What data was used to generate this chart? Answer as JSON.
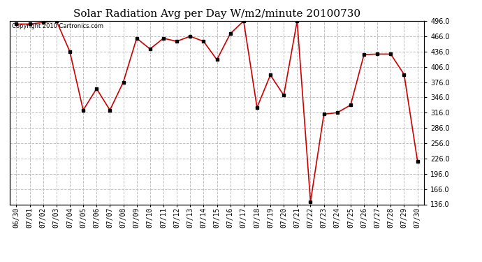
{
  "title": "Solar Radiation Avg per Day W/m2/minute 20100730",
  "copyright_text": "Copyright 2010 Cartronics.com",
  "dates": [
    "06/30",
    "07/01",
    "07/02",
    "07/03",
    "07/04",
    "07/05",
    "07/06",
    "07/07",
    "07/08",
    "07/09",
    "07/10",
    "07/11",
    "07/12",
    "07/13",
    "07/14",
    "07/15",
    "07/16",
    "07/17",
    "07/18",
    "07/19",
    "07/20",
    "07/21",
    "07/22",
    "07/23",
    "07/24",
    "07/25",
    "07/26",
    "07/27",
    "07/28",
    "07/29",
    "07/30"
  ],
  "values": [
    490,
    490,
    493,
    496,
    436,
    321,
    363,
    321,
    376,
    462,
    441,
    462,
    456,
    466,
    456,
    420,
    471,
    496,
    326,
    390,
    350,
    496,
    141,
    313,
    316,
    331,
    430,
    431,
    431,
    391,
    221
  ],
  "ylim": [
    136.0,
    496.0
  ],
  "yticks": [
    136.0,
    166.0,
    196.0,
    226.0,
    256.0,
    286.0,
    316.0,
    346.0,
    376.0,
    406.0,
    436.0,
    466.0,
    496.0
  ],
  "line_color": "#cc0000",
  "marker": "s",
  "marker_color": "#000000",
  "marker_size": 2.5,
  "grid_color": "#c0c0c0",
  "grid_style": "--",
  "bg_color": "#ffffff",
  "title_fontsize": 11,
  "copyright_fontsize": 6,
  "tick_fontsize": 7
}
